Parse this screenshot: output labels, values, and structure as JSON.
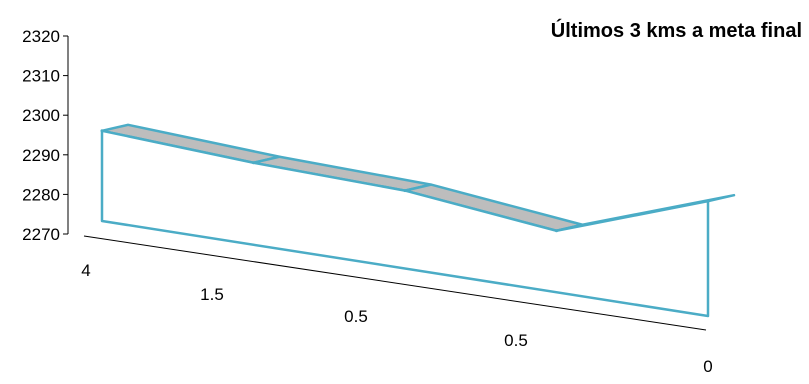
{
  "chart_data": {
    "type": "area",
    "title": "Últimos 3 kms a meta final",
    "xlabel": "",
    "ylabel": "",
    "categories": [
      "4",
      "1.5",
      "0.5",
      "0.5",
      "0"
    ],
    "values": [
      2292,
      2290,
      2289,
      2285,
      2298
    ],
    "ylim": [
      2270,
      2320
    ],
    "yticks": [
      2270,
      2280,
      2290,
      2300,
      2310,
      2320
    ],
    "style": "3d",
    "colors": {
      "edge": "#4bacc6",
      "top": "#bdbdbd",
      "axis": "#000000"
    }
  }
}
